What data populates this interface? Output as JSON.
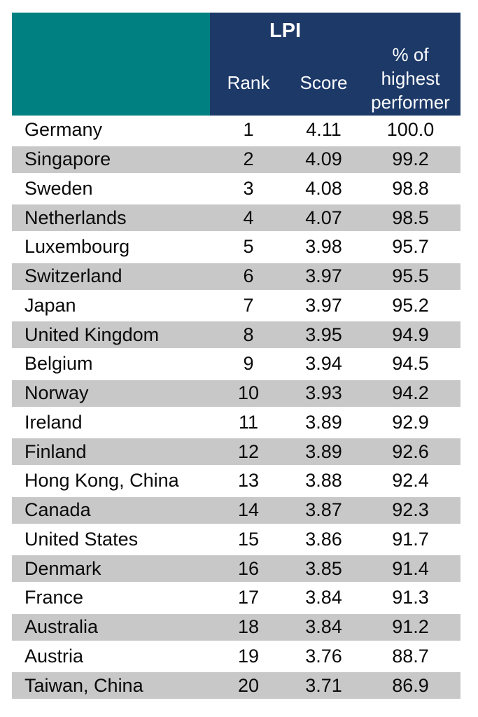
{
  "colors": {
    "corner_teal": "#008080",
    "header_navy": "#1c3968",
    "row_gray": "#c8c8c8",
    "header_text": "#ffffff",
    "body_text": "#0a0a0a"
  },
  "chart_data": {
    "type": "table",
    "group_header": "LPI",
    "columns": [
      "Rank",
      "Score",
      "% of highest performer"
    ],
    "rows": [
      {
        "country": "Germany",
        "rank": "1",
        "score": "4.11",
        "pct": "100.0"
      },
      {
        "country": "Singapore",
        "rank": "2",
        "score": "4.09",
        "pct": "99.2"
      },
      {
        "country": "Sweden",
        "rank": "3",
        "score": "4.08",
        "pct": "98.8"
      },
      {
        "country": "Netherlands",
        "rank": "4",
        "score": "4.07",
        "pct": "98.5"
      },
      {
        "country": "Luxembourg",
        "rank": "5",
        "score": "3.98",
        "pct": "95.7"
      },
      {
        "country": "Switzerland",
        "rank": "6",
        "score": "3.97",
        "pct": "95.5"
      },
      {
        "country": "Japan",
        "rank": "7",
        "score": "3.97",
        "pct": "95.2"
      },
      {
        "country": "United Kingdom",
        "rank": "8",
        "score": "3.95",
        "pct": "94.9"
      },
      {
        "country": "Belgium",
        "rank": "9",
        "score": "3.94",
        "pct": "94.5"
      },
      {
        "country": "Norway",
        "rank": "10",
        "score": "3.93",
        "pct": "94.2"
      },
      {
        "country": "Ireland",
        "rank": "11",
        "score": "3.89",
        "pct": "92.9"
      },
      {
        "country": "Finland",
        "rank": "12",
        "score": "3.89",
        "pct": "92.6"
      },
      {
        "country": "Hong Kong, China",
        "rank": "13",
        "score": "3.88",
        "pct": "92.4"
      },
      {
        "country": "Canada",
        "rank": "14",
        "score": "3.87",
        "pct": "92.3"
      },
      {
        "country": "United States",
        "rank": "15",
        "score": "3.86",
        "pct": "91.7"
      },
      {
        "country": "Denmark",
        "rank": "16",
        "score": "3.85",
        "pct": "91.4"
      },
      {
        "country": "France",
        "rank": "17",
        "score": "3.84",
        "pct": "91.3"
      },
      {
        "country": "Australia",
        "rank": "18",
        "score": "3.84",
        "pct": "91.2"
      },
      {
        "country": "Austria",
        "rank": "19",
        "score": "3.76",
        "pct": "88.7"
      },
      {
        "country": "Taiwan, China",
        "rank": "20",
        "score": "3.71",
        "pct": "86.9"
      }
    ]
  }
}
